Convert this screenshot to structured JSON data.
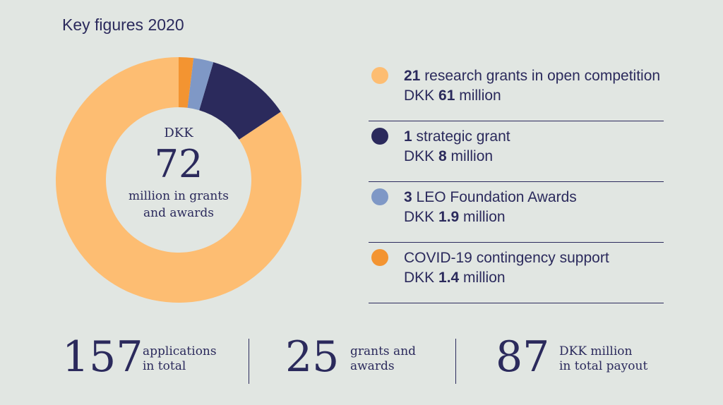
{
  "title": "Key figures 2020",
  "center": {
    "currency": "DKK",
    "value": "72",
    "desc_line1": "million in grants",
    "desc_line2": "and awards"
  },
  "legend": [
    {
      "count": "21",
      "text": " research grants in open competition",
      "pre": "DKK ",
      "amount": "61",
      "post": " million",
      "color": "#fdbd72"
    },
    {
      "count": "1",
      "text": " strategic grant",
      "pre": "DKK ",
      "amount": "8",
      "post": " million",
      "color": "#2b2a5c"
    },
    {
      "count": "3",
      "text": " LEO Foundation Awards",
      "pre": "DKK ",
      "amount": "1.9",
      "post": " million",
      "color": "#7f98c6"
    },
    {
      "count": "",
      "text": "COVID-19 contingency support",
      "pre": "DKK ",
      "amount": "1.4",
      "post": " million",
      "color": "#f39431"
    }
  ],
  "stats": [
    {
      "value": "157",
      "label1": "applications",
      "label2": "in total"
    },
    {
      "value": "25",
      "label1": "grants and",
      "label2": "awards"
    },
    {
      "value": "87",
      "label1": "DKK million",
      "label2": "in total payout"
    }
  ],
  "chart_data": {
    "type": "pie",
    "categories": [
      "21 research grants in open competition",
      "1 strategic grant",
      "3 LEO Foundation Awards",
      "COVID-19 contingency support"
    ],
    "values": [
      61,
      8,
      1.9,
      1.4
    ],
    "colors": [
      "#fdbd72",
      "#2b2a5c",
      "#7f98c6",
      "#f39431"
    ],
    "title": "Key figures 2020",
    "donut": true
  }
}
